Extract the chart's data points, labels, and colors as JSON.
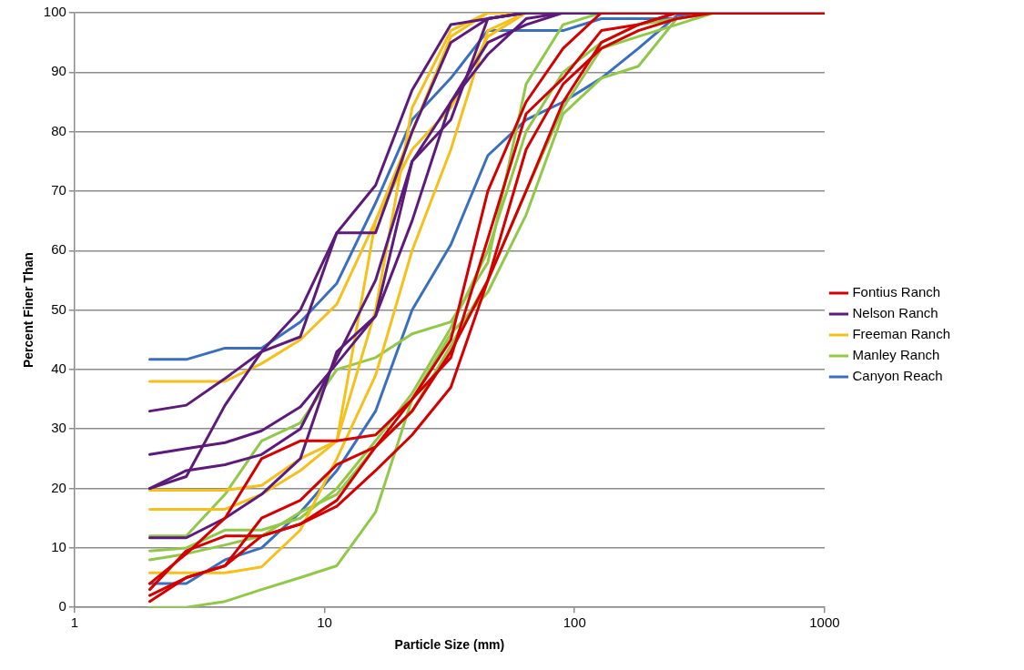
{
  "chart_data": {
    "type": "line",
    "xlabel": "Particle Size (mm)",
    "ylabel": "Percent Finer Than",
    "xlim": [
      1,
      1000
    ],
    "xticks": [
      1,
      10,
      100,
      1000
    ],
    "ylim": [
      0,
      100
    ],
    "yticks": [
      0,
      10,
      20,
      30,
      40,
      50,
      60,
      70,
      80,
      90,
      100
    ],
    "log": "x",
    "grid": "y",
    "legend": "right",
    "marker": "none",
    "line_style": "solid",
    "series": [
      {
        "name": "Fontius Ranch",
        "color": "#d40000",
        "x": [
          2,
          2.8,
          4,
          5.6,
          8,
          11.2,
          16,
          22.4,
          32,
          45,
          64,
          90,
          128,
          1000
        ],
        "values": [
          4,
          9,
          15,
          25,
          28,
          28,
          29,
          35,
          45,
          70,
          85,
          94,
          100,
          100
        ]
      },
      {
        "color": "#d40000",
        "x": [
          2,
          2.8,
          4,
          5.6,
          8,
          11.2,
          16,
          22.4,
          32,
          45,
          64,
          90,
          128,
          180,
          256,
          1000
        ],
        "values": [
          3,
          9.5,
          12,
          12,
          14,
          18,
          27,
          35,
          42,
          62,
          83,
          89,
          97,
          98,
          100,
          100
        ]
      },
      {
        "color": "#d40000",
        "x": [
          2,
          2.8,
          4,
          5.6,
          8,
          11.2,
          16,
          22.4,
          32,
          45,
          64,
          90,
          128,
          180,
          256,
          362,
          1000
        ],
        "values": [
          2,
          5,
          7,
          15,
          18,
          24,
          27,
          33,
          43,
          55,
          77,
          88,
          94,
          97,
          99,
          100,
          100
        ]
      },
      {
        "color": "#d40000",
        "x": [
          2,
          2.8,
          4,
          5.6,
          8,
          11.2,
          16,
          22.4,
          32,
          45,
          64,
          90,
          128,
          180,
          256,
          1000
        ],
        "values": [
          1,
          5,
          7,
          12,
          14,
          17,
          23,
          29,
          37,
          55,
          70,
          85,
          95,
          98,
          100,
          100
        ]
      },
      {
        "name": "Nelson Ranch",
        "color": "#5c1a7a",
        "x": [
          2,
          2.8,
          4,
          5.6,
          8,
          11.2,
          16,
          22.4,
          32,
          45,
          64,
          1000
        ],
        "values": [
          33,
          34,
          38.5,
          43,
          45.5,
          63,
          71,
          87,
          98,
          99,
          100,
          100
        ]
      },
      {
        "color": "#5c1a7a",
        "x": [
          2,
          2.8,
          4,
          5.6,
          8,
          11.2,
          16,
          22.4,
          32,
          45,
          64,
          1000
        ],
        "values": [
          20,
          22,
          34,
          43,
          50,
          63,
          63,
          80,
          95,
          99,
          100,
          100
        ]
      },
      {
        "color": "#5c1a7a",
        "x": [
          2,
          2.8,
          4,
          5.6,
          8,
          11.2,
          16,
          22.4,
          32,
          45,
          64,
          90,
          1000
        ],
        "values": [
          25.7,
          26.7,
          27.7,
          29.7,
          33.7,
          41,
          49,
          65,
          85,
          93,
          99,
          100,
          100
        ]
      },
      {
        "color": "#5c1a7a",
        "x": [
          2,
          2.8,
          4,
          5.6,
          8,
          11.2,
          16,
          22.4,
          32,
          45,
          64,
          90,
          1000
        ],
        "values": [
          20,
          23,
          24,
          25.7,
          30,
          42,
          55,
          75,
          85,
          95,
          98,
          100,
          100
        ]
      },
      {
        "color": "#5c1a7a",
        "x": [
          2,
          2.8,
          4,
          5.6,
          8,
          11.2,
          16,
          22.4,
          32,
          45,
          64,
          1000
        ],
        "values": [
          11.7,
          11.7,
          15,
          19,
          25,
          43,
          49,
          75,
          82,
          99,
          100,
          100
        ]
      },
      {
        "name": "Freeman Ranch",
        "color": "#f5c01c",
        "x": [
          2,
          2.8,
          4,
          5.6,
          8,
          11.2,
          16,
          22.4,
          32,
          45,
          64,
          1000
        ],
        "values": [
          38,
          38,
          38,
          41,
          45,
          51,
          65,
          77,
          84,
          96,
          100,
          100
        ]
      },
      {
        "color": "#f5c01c",
        "x": [
          2,
          2.8,
          4,
          5.6,
          8,
          11.2,
          16,
          22.4,
          32,
          45,
          1000
        ],
        "values": [
          19.7,
          19.7,
          19.7,
          20.5,
          25,
          28,
          65,
          80,
          96,
          100,
          100
        ]
      },
      {
        "color": "#f5c01c",
        "x": [
          2,
          2.8,
          4,
          5.6,
          8,
          11.2,
          16,
          22.4,
          32,
          45,
          1000
        ],
        "values": [
          16.5,
          16.5,
          16.5,
          19,
          23,
          28,
          50,
          84,
          97,
          100,
          100
        ]
      },
      {
        "color": "#f5c01c",
        "x": [
          2,
          2.8,
          4,
          5.6,
          8,
          11.2,
          16,
          22.4,
          32,
          45,
          64,
          1000
        ],
        "values": [
          5.8,
          5.8,
          5.8,
          6.8,
          13,
          25,
          39,
          60,
          77,
          97,
          100,
          100
        ]
      },
      {
        "name": "Manley Ranch",
        "color": "#92c84a",
        "x": [
          2,
          2.8,
          4,
          5.6,
          8,
          11.2,
          16,
          22.4,
          32,
          45,
          64,
          90,
          128,
          1000
        ],
        "values": [
          12,
          12,
          19,
          28,
          31,
          40,
          42,
          46,
          48,
          58,
          88,
          98,
          100,
          100
        ]
      },
      {
        "color": "#92c84a",
        "x": [
          2,
          2.8,
          4,
          5.6,
          8,
          11.2,
          16,
          22.4,
          32,
          45,
          64,
          90,
          128,
          180,
          256,
          362,
          1000
        ],
        "values": [
          9.5,
          10,
          13,
          13,
          15,
          20,
          28,
          36,
          47,
          60,
          80,
          90,
          95,
          98,
          99,
          100,
          100
        ]
      },
      {
        "color": "#92c84a",
        "x": [
          2,
          2.8,
          4,
          5.6,
          8,
          11.2,
          16,
          22.4,
          32,
          45,
          64,
          90,
          128,
          180,
          256,
          362,
          1000
        ],
        "values": [
          8,
          9,
          10.5,
          12,
          16,
          19,
          27,
          33,
          44,
          55,
          70,
          84,
          94,
          96,
          98,
          100,
          100
        ]
      },
      {
        "color": "#92c84a",
        "x": [
          2,
          2.8,
          4,
          5.6,
          8,
          11.2,
          16,
          22.4,
          32,
          45,
          64,
          90,
          128,
          180,
          256,
          362,
          1000
        ],
        "values": [
          0,
          0,
          1,
          3,
          5,
          7,
          16,
          35,
          46,
          53,
          66,
          83,
          89,
          91,
          99,
          100,
          100
        ]
      },
      {
        "name": "Canyon Reach",
        "color": "#3a6fbf",
        "x": [
          2,
          2.8,
          4,
          5.6,
          8,
          11.2,
          16,
          22.4,
          32,
          45,
          64,
          90,
          128,
          180,
          256,
          362,
          1000
        ],
        "values": [
          41.7,
          41.7,
          43.6,
          43.6,
          48,
          54.5,
          68,
          82,
          89,
          97,
          97,
          97,
          99,
          99,
          99,
          100,
          100
        ]
      },
      {
        "color": "#3a6fbf",
        "x": [
          2,
          2.8,
          4,
          5.6,
          8,
          11.2,
          16,
          22.4,
          32,
          45,
          64,
          90,
          128,
          180,
          256,
          362,
          1000
        ],
        "values": [
          4,
          4,
          8,
          10,
          16,
          23,
          33,
          50,
          61,
          76,
          82,
          85,
          89,
          94,
          99.5,
          100,
          100
        ]
      }
    ]
  }
}
